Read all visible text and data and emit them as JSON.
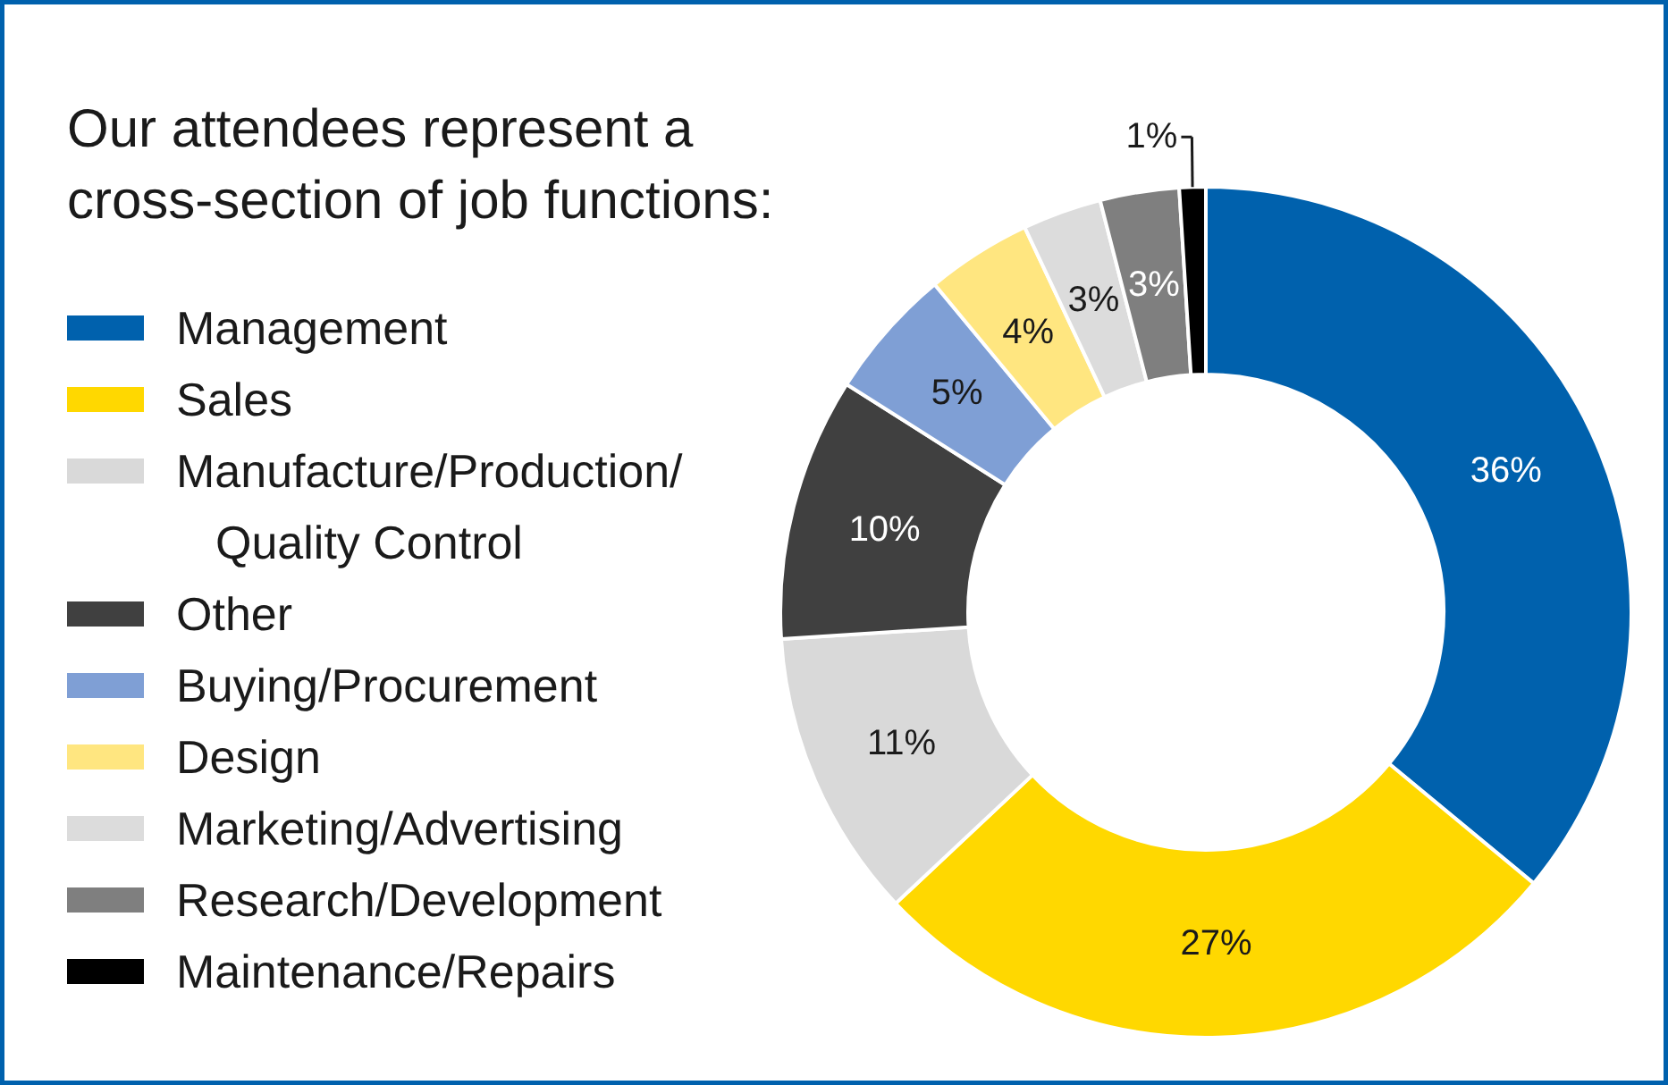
{
  "chart_data": {
    "type": "donut",
    "title": "Our attendees represent a cross-section of job functions:",
    "categories": [
      "Management",
      "Sales",
      "Manufacture/Production/Quality Control",
      "Other",
      "Buying/Procurement",
      "Design",
      "Marketing/Advertising",
      "Research/Development",
      "Maintenance/Repairs"
    ],
    "values": [
      36,
      27,
      11,
      10,
      5,
      4,
      3,
      3,
      1
    ],
    "colors": [
      "#0061ad",
      "#ffd800",
      "#d9d9d9",
      "#404040",
      "#7f9fd5",
      "#ffe680",
      "#dcdcdc",
      "#7f7f7f",
      "#000000"
    ],
    "value_labels": [
      "36%",
      "27%",
      "11%",
      "10%",
      "5%",
      "4%",
      "3%",
      "3%",
      "1%"
    ],
    "legend": "left"
  }
}
